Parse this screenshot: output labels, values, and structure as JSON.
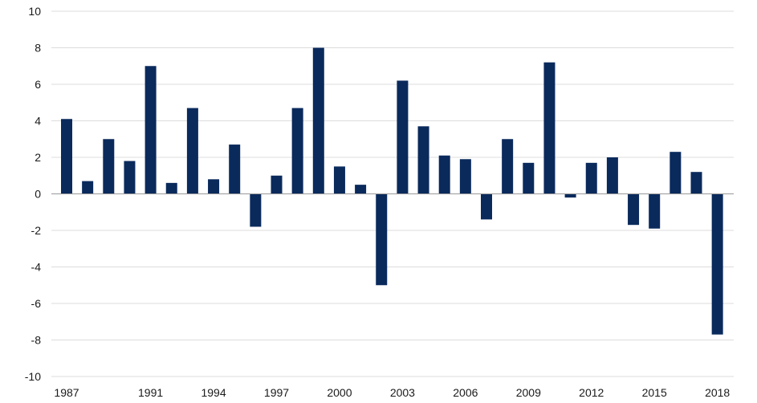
{
  "chart_data": {
    "type": "bar",
    "title": "",
    "xlabel": "",
    "ylabel": "",
    "ylim": [
      -10,
      10
    ],
    "yticks": [
      10,
      8,
      6,
      4,
      2,
      0,
      -2,
      -4,
      -6,
      -8,
      -10
    ],
    "ytick_labels": [
      "10",
      "8",
      "6",
      "4",
      "2",
      "0",
      "-2",
      "-4",
      "-6",
      "-8",
      "-10"
    ],
    "grid": true,
    "bar_color": "#0a2a5c",
    "categories": [
      "1987",
      "1988",
      "1989",
      "1990",
      "1991",
      "1992",
      "1993",
      "1994",
      "1995",
      "1996",
      "1997",
      "1998",
      "1999",
      "2000",
      "2001",
      "2002",
      "2003",
      "2004",
      "2005",
      "2006",
      "2007",
      "2008",
      "2009",
      "2010",
      "2011",
      "2012",
      "2013",
      "2014",
      "2015",
      "2016",
      "2017",
      "2018"
    ],
    "values": [
      4.1,
      0.7,
      3.0,
      1.8,
      7.0,
      0.6,
      4.7,
      0.8,
      2.7,
      -1.8,
      1.0,
      4.7,
      8.0,
      1.5,
      0.5,
      -5.0,
      6.2,
      3.7,
      2.1,
      1.9,
      -1.4,
      3.0,
      1.7,
      7.2,
      -0.2,
      1.7,
      2.0,
      -1.7,
      -1.9,
      2.3,
      1.2,
      -7.7
    ],
    "xtick_labels": [
      "1987",
      "1991",
      "1994",
      "1997",
      "2000",
      "2003",
      "2006",
      "2009",
      "2012",
      "2015",
      "2018"
    ]
  }
}
